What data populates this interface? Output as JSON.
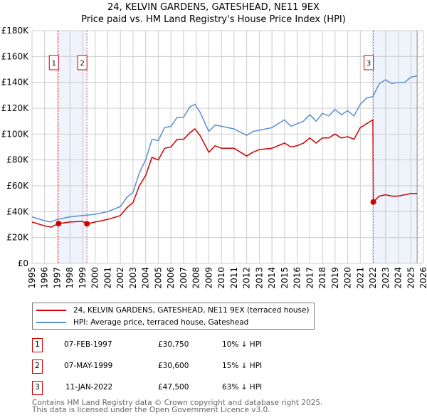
{
  "title": "24, KELVIN GARDENS, GATESHEAD, NE11 9EX",
  "subtitle": "Price paid vs. HM Land Registry's House Price Index (HPI)",
  "colors": {
    "property": "#cc0000",
    "hpi": "#5b8fd4",
    "shade": "#eef3fc"
  },
  "chart_data": {
    "type": "line",
    "title": "24, KELVIN GARDENS, GATESHEAD, NE11 9EX",
    "xlim": [
      1995,
      2026
    ],
    "ylim": [
      0,
      180000
    ],
    "yticks": [
      0,
      20000,
      40000,
      60000,
      80000,
      100000,
      120000,
      140000,
      160000,
      180000
    ],
    "ytick_labels": [
      "£0",
      "£20K",
      "£40K",
      "£60K",
      "£80K",
      "£100K",
      "£120K",
      "£140K",
      "£160K",
      "£180K"
    ],
    "xticks": [
      1995,
      1996,
      1997,
      1998,
      1999,
      2000,
      2001,
      2002,
      2003,
      2004,
      2005,
      2006,
      2007,
      2008,
      2009,
      2010,
      2011,
      2012,
      2013,
      2014,
      2015,
      2016,
      2017,
      2018,
      2019,
      2020,
      2021,
      2022,
      2023,
      2024,
      2025,
      2026
    ],
    "grid": true,
    "shaded_ranges": [
      [
        1997.1,
        1999.35
      ],
      [
        2022.03,
        2025.5
      ]
    ],
    "hatched_from": 2025.5,
    "series": [
      {
        "name": "24, KELVIN GARDENS, GATESHEAD, NE11 9EX (terraced house)",
        "color": "#cc0000",
        "x": [
          1995,
          1996,
          1996.5,
          1997.1,
          1998,
          1999,
          1999.35,
          2000,
          2001,
          2002,
          2002.5,
          2003,
          2003.5,
          2004,
          2004.5,
          2005,
          2005.5,
          2006,
          2006.5,
          2007,
          2007.5,
          2007.9,
          2008.3,
          2009,
          2009.5,
          2010,
          2011,
          2012,
          2012.5,
          2013,
          2014,
          2015,
          2015.5,
          2016,
          2016.5,
          2017,
          2017.5,
          2018,
          2018.5,
          2019,
          2019.5,
          2020,
          2020.5,
          2021,
          2021.5,
          2022,
          2022.03,
          2022.5,
          2023,
          2023.5,
          2024,
          2024.5,
          2025,
          2025.5
        ],
        "y": [
          32000,
          29000,
          28000,
          30750,
          32000,
          32500,
          30600,
          32000,
          34000,
          37000,
          43000,
          47000,
          60000,
          68000,
          82000,
          80000,
          89000,
          90000,
          96000,
          96000,
          101000,
          104000,
          99000,
          86000,
          91000,
          89000,
          89000,
          83000,
          86000,
          88000,
          89000,
          93000,
          90000,
          91000,
          93000,
          97000,
          93000,
          97000,
          97000,
          100000,
          97000,
          98000,
          96000,
          105000,
          108000,
          111000,
          47500,
          52000,
          53000,
          52000,
          52000,
          53000,
          54000,
          54000
        ]
      },
      {
        "name": "HPI: Average price, terraced house, Gateshead",
        "color": "#5b8fd4",
        "x": [
          1995,
          1996,
          1996.5,
          1997,
          1998,
          1999,
          2000,
          2001,
          2002,
          2002.5,
          2003,
          2003.5,
          2004,
          2004.5,
          2005,
          2005.5,
          2006,
          2006.5,
          2007,
          2007.5,
          2007.9,
          2008.3,
          2009,
          2009.5,
          2010,
          2011,
          2012,
          2012.5,
          2013,
          2014,
          2015,
          2015.5,
          2016,
          2016.5,
          2017,
          2017.5,
          2018,
          2018.5,
          2019,
          2019.5,
          2020,
          2020.5,
          2021,
          2021.5,
          2022,
          2022.5,
          2023,
          2023.5,
          2024,
          2024.5,
          2025,
          2025.5
        ],
        "y": [
          36000,
          33000,
          32000,
          34000,
          36000,
          37000,
          38000,
          40000,
          44000,
          51000,
          55000,
          70000,
          80000,
          96000,
          95000,
          105000,
          106000,
          113000,
          113000,
          121000,
          123000,
          117000,
          102000,
          107000,
          106000,
          104000,
          99000,
          102000,
          103000,
          105000,
          111000,
          106000,
          108000,
          110000,
          115000,
          110000,
          116000,
          114000,
          119000,
          115000,
          118000,
          114000,
          123000,
          128000,
          129000,
          139000,
          142000,
          139000,
          140000,
          140000,
          144000,
          145000
        ]
      }
    ],
    "markers": [
      {
        "label": "1",
        "x": 1997.1,
        "y": 30750
      },
      {
        "label": "2",
        "x": 1999.35,
        "y": 30600
      },
      {
        "label": "3",
        "x": 2022.03,
        "y": 47500
      }
    ]
  },
  "legend": {
    "property": "24, KELVIN GARDENS, GATESHEAD, NE11 9EX (terraced house)",
    "hpi": "HPI: Average price, terraced house, Gateshead"
  },
  "transactions": [
    {
      "num": "1",
      "date": "07-FEB-1997",
      "price": "£30,750",
      "hpi": "10% ↓ HPI"
    },
    {
      "num": "2",
      "date": "07-MAY-1999",
      "price": "£30,600",
      "hpi": "15% ↓ HPI"
    },
    {
      "num": "3",
      "date": "11-JAN-2022",
      "price": "£47,500",
      "hpi": "63% ↓ HPI"
    }
  ],
  "footer": {
    "line1": "Contains HM Land Registry data © Crown copyright and database right 2025.",
    "line2": "This data is licensed under the Open Government Licence v3.0."
  }
}
